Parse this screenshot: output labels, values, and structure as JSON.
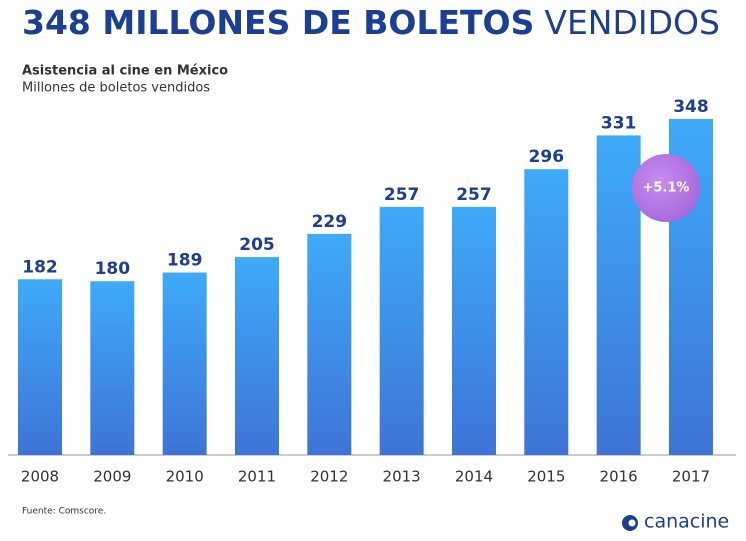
{
  "chart_data": {
    "type": "bar",
    "title": [
      "348 MILLONES DE BOLETOS",
      "VENDIDOS"
    ],
    "subtitle": "Asistencia al cine en México",
    "y_label": "Millones de boletos vendidos",
    "categories": [
      "2008",
      "2009",
      "2010",
      "2011",
      "2012",
      "2013",
      "2014",
      "2015",
      "2016",
      "2017"
    ],
    "values": [
      182,
      180,
      189,
      205,
      229,
      257,
      257,
      296,
      331,
      348
    ],
    "color": "#3f9ff2",
    "annotation": "+5.1%",
    "source": "Fuente: Comscore.",
    "logo": "canacine"
  }
}
